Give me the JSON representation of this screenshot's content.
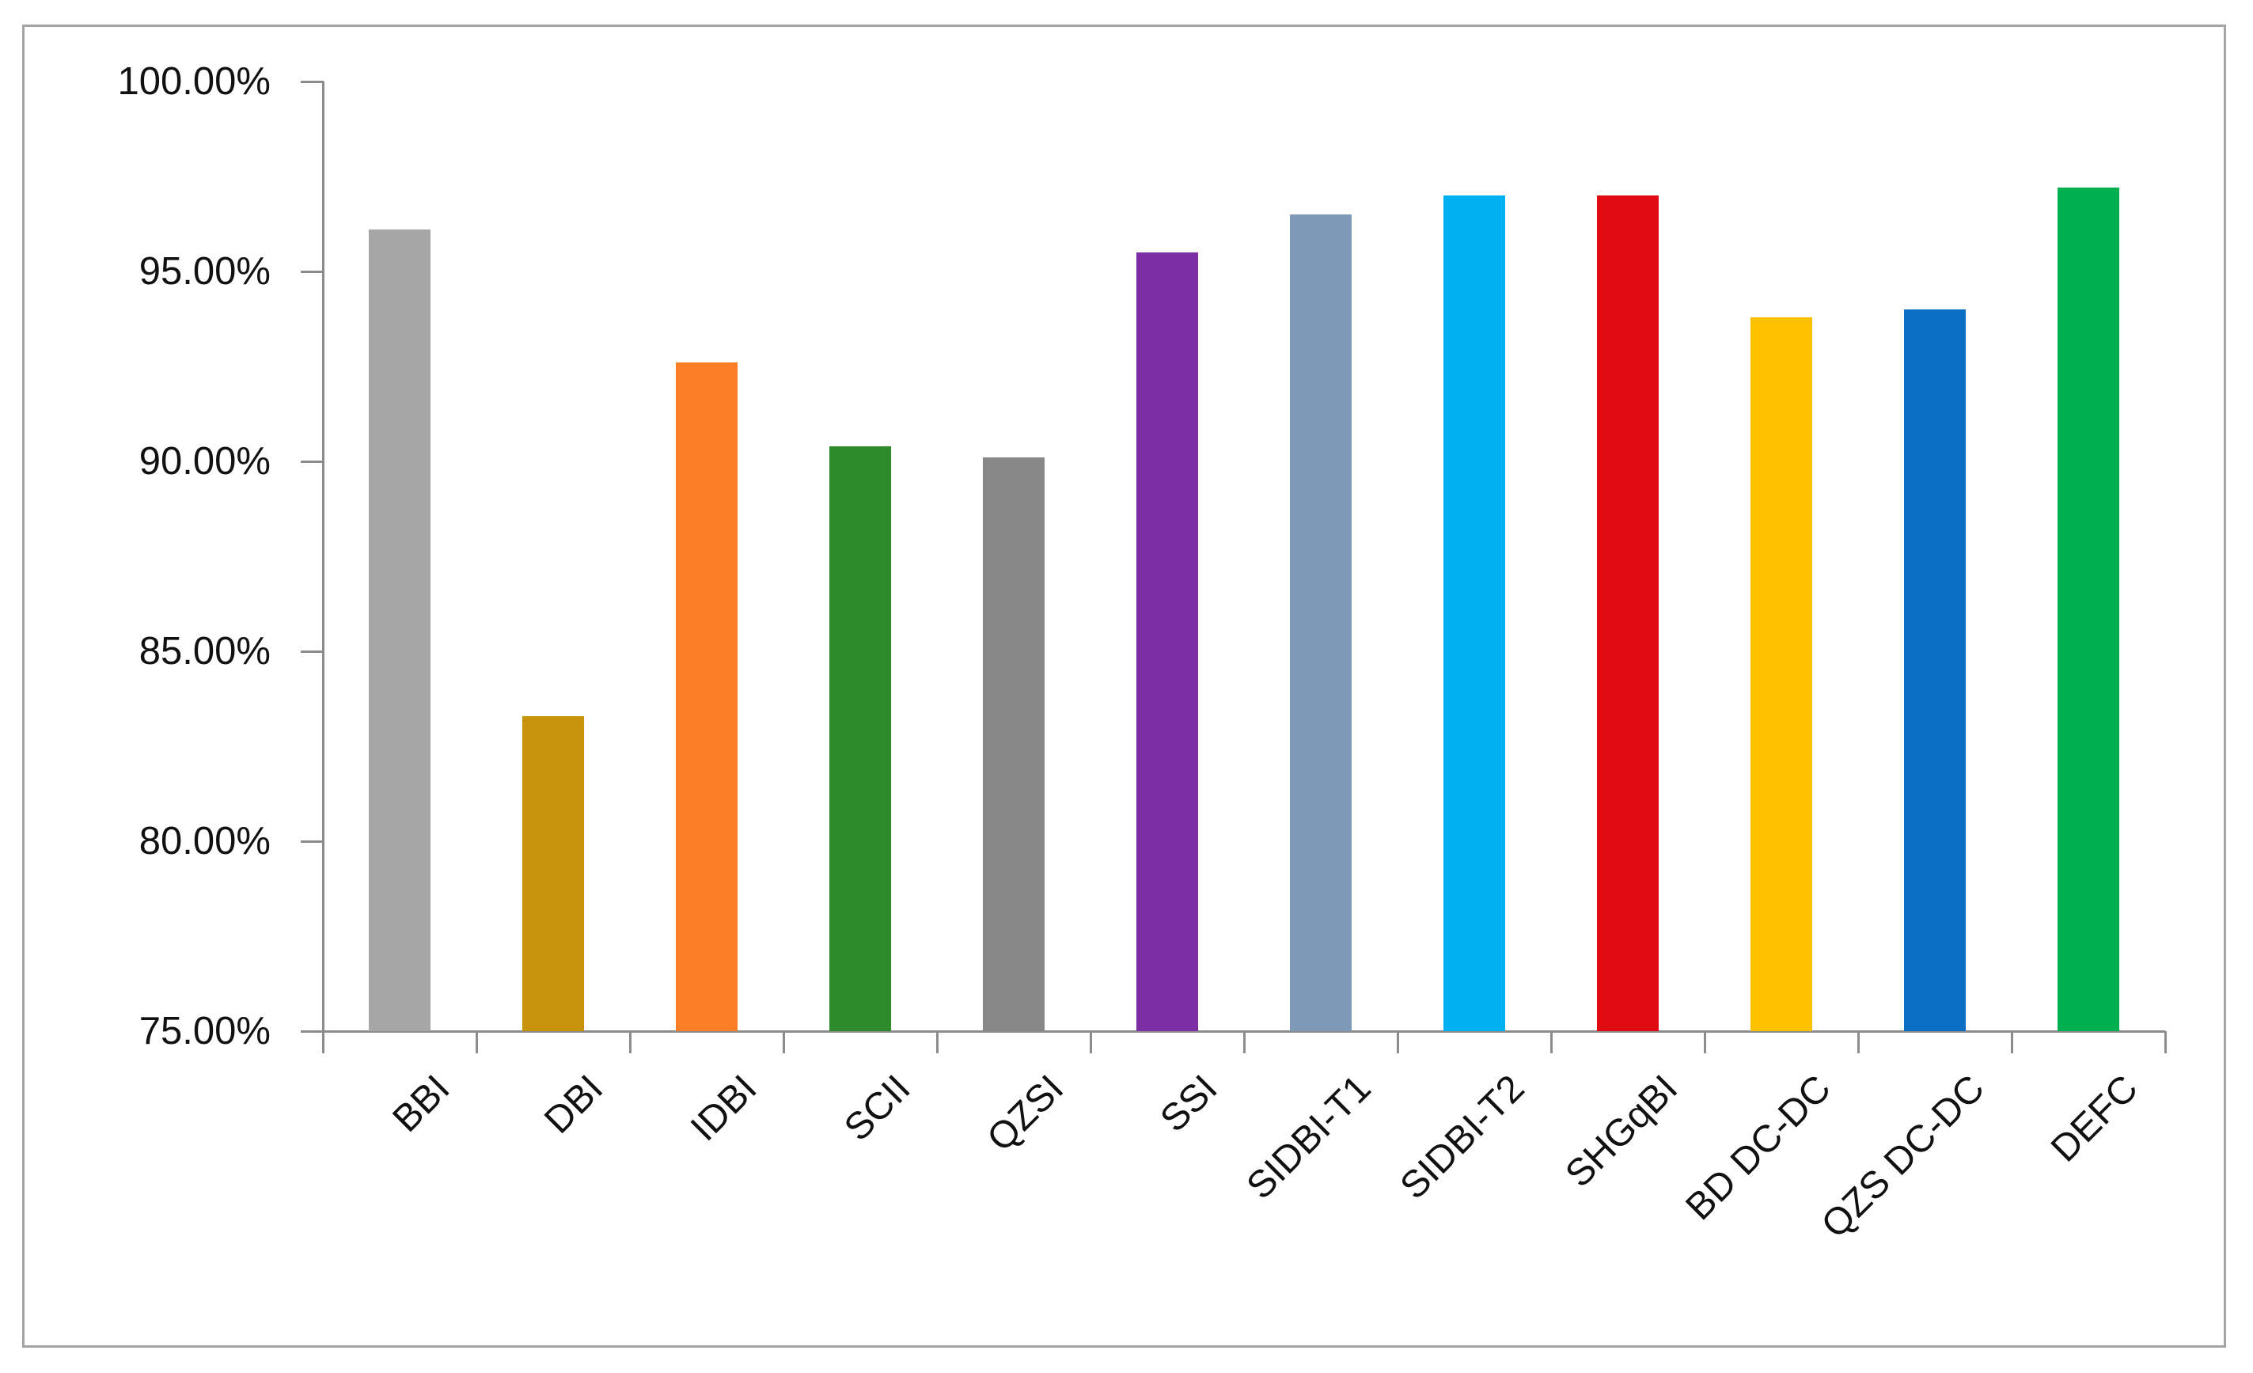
{
  "chart_data": {
    "type": "bar",
    "title": "",
    "xlabel": "",
    "ylabel": "",
    "categories": [
      "BBI",
      "DBI",
      "IDBI",
      "SCII",
      "QZSI",
      "SSI",
      "SIDBI-T1",
      "SIDBI-T2",
      "SHGqBI",
      "BD DC-DC",
      "QZS DC-DC",
      "DEFC"
    ],
    "values": [
      96.1,
      83.3,
      92.6,
      90.4,
      90.1,
      95.5,
      96.5,
      97.0,
      97.0,
      93.8,
      94.0,
      97.2
    ],
    "value_unit": "%",
    "bar_colors": [
      "#A6A6A6",
      "#C8920B",
      "#FB7D26",
      "#2E8B2C",
      "#878787",
      "#7D2EA5",
      "#7E99B8",
      "#00B0F0",
      "#E00B10",
      "#FFC000",
      "#0B70C5",
      "#00B050"
    ],
    "y_axis": {
      "min": 75,
      "max": 100,
      "step": 5,
      "tick_labels": [
        "100.00%",
        "95.00%",
        "90.00%",
        "85.00%",
        "80.00%",
        "75.00%"
      ]
    },
    "x_tick_rotation_deg": 45,
    "grid": false,
    "legend": false
  },
  "styles": {
    "background": "#FFFFFF",
    "axis_color": "#8C8C8C",
    "text_color": "#111111",
    "frame_border_color": "#A3A3A3"
  }
}
